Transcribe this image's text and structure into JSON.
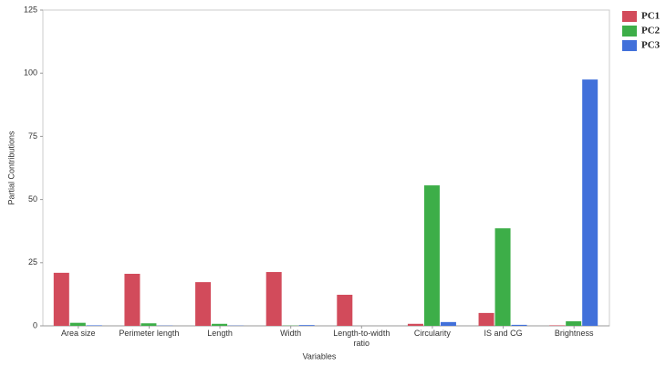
{
  "chart_data": {
    "type": "bar",
    "x_label": "Variables",
    "y_label": "Partial Contributions",
    "categories": [
      "Area size",
      "Perimeter length",
      "Length",
      "Width",
      "Length-to-width ratio",
      "Circularity",
      "IS and CG",
      "Brightness"
    ],
    "series": [
      {
        "name": "PC1",
        "color": "#d24b5b",
        "values": [
          21,
          20.6,
          17.3,
          21.3,
          12.3,
          0.8,
          5.1,
          0.2
        ]
      },
      {
        "name": "PC2",
        "color": "#3dae48",
        "values": [
          1.2,
          1,
          0.8,
          0.1,
          0,
          55.6,
          38.6,
          1.8
        ]
      },
      {
        "name": "PC3",
        "color": "#4170da",
        "values": [
          0.2,
          0.1,
          0.1,
          0.3,
          0,
          1.5,
          0.4,
          97.5
        ]
      }
    ],
    "ylim": [
      0,
      125
    ],
    "yticks": [
      0,
      25,
      50,
      75,
      100,
      125
    ],
    "legend": "right"
  }
}
